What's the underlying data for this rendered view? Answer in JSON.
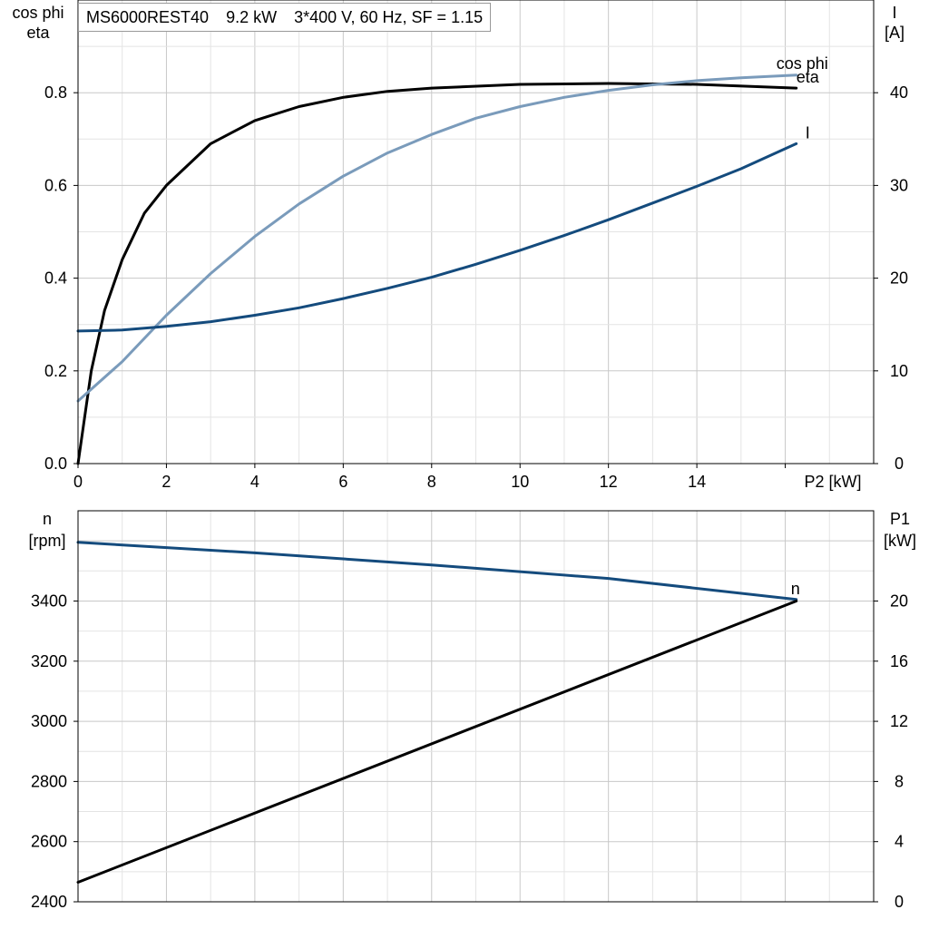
{
  "chart_data": [
    {
      "type": "line",
      "title": "MS6000REST40  9.2 kW  3*400 V, 60 Hz, SF = 1.15",
      "title_parts": [
        "MS6000REST40",
        "9.2 kW",
        "3*400 V, 60 Hz, SF = 1.15"
      ],
      "xlabel": "P2 [kW]",
      "ylabel_left": [
        "cos phi",
        "eta"
      ],
      "ylabel_right": [
        "I",
        "[A]"
      ],
      "xlim": [
        0,
        18
      ],
      "ylim_left": [
        0,
        1.0
      ],
      "ylim_right": [
        0,
        50
      ],
      "xticks": [
        0,
        2,
        4,
        6,
        8,
        10,
        12,
        14
      ],
      "yticks_left": [
        0.0,
        0.2,
        0.4,
        0.6,
        0.8
      ],
      "yticks_left_labels": [
        "0.0",
        "0.2",
        "0.4",
        "0.6",
        "0.8"
      ],
      "yticks_right": [
        0,
        10,
        20,
        30,
        40
      ],
      "grid": true,
      "series": [
        {
          "name": "eta",
          "axis": "left",
          "color": "#000000",
          "x": [
            0,
            0.3,
            0.6,
            1.0,
            1.5,
            2.0,
            3.0,
            4.0,
            5.0,
            6.0,
            7.0,
            8.0,
            10.0,
            12.0,
            14.0,
            16.25
          ],
          "y": [
            0.0,
            0.2,
            0.33,
            0.44,
            0.54,
            0.6,
            0.69,
            0.74,
            0.77,
            0.79,
            0.803,
            0.81,
            0.818,
            0.82,
            0.818,
            0.81
          ]
        },
        {
          "name": "cos phi",
          "axis": "left",
          "color": "#7a9bbb",
          "x": [
            0,
            1.0,
            2.0,
            3.0,
            4.0,
            5.0,
            6.0,
            7.0,
            8.0,
            9.0,
            10.0,
            11.0,
            12.0,
            13.0,
            14.0,
            15.0,
            16.25
          ],
          "y": [
            0.135,
            0.22,
            0.32,
            0.41,
            0.49,
            0.56,
            0.62,
            0.67,
            0.71,
            0.745,
            0.77,
            0.79,
            0.805,
            0.817,
            0.826,
            0.832,
            0.838
          ]
        },
        {
          "name": "I",
          "axis": "right",
          "color": "#144b7d",
          "x": [
            0,
            1.0,
            2.0,
            3.0,
            4.0,
            5.0,
            6.0,
            7.0,
            8.0,
            9.0,
            10.0,
            11.0,
            12.0,
            13.0,
            14.0,
            15.0,
            16.25
          ],
          "y": [
            14.3,
            14.4,
            14.8,
            15.3,
            16.0,
            16.8,
            17.8,
            18.9,
            20.1,
            21.5,
            23.0,
            24.6,
            26.3,
            28.1,
            29.9,
            31.8,
            34.5
          ]
        }
      ]
    },
    {
      "type": "line",
      "xlim": [
        0,
        18
      ],
      "ylabel_left": [
        "n",
        "[rpm]"
      ],
      "ylabel_right": [
        "P1",
        "[kW]"
      ],
      "ylim_left": [
        2400,
        3700
      ],
      "ylim_right": [
        0,
        26
      ],
      "yticks_left": [
        2400,
        2600,
        2800,
        3000,
        3200,
        3400
      ],
      "yticks_right": [
        0,
        4,
        8,
        12,
        16,
        20
      ],
      "grid": true,
      "series": [
        {
          "name": "n",
          "axis": "left",
          "color": "#144b7d",
          "x": [
            0,
            4,
            8,
            12,
            16.25
          ],
          "y": [
            3595,
            3560,
            3520,
            3475,
            3405
          ]
        },
        {
          "name": "P1",
          "axis": "right",
          "color": "#000000",
          "x": [
            0,
            16.25
          ],
          "y": [
            1.3,
            20.0
          ]
        }
      ]
    }
  ]
}
